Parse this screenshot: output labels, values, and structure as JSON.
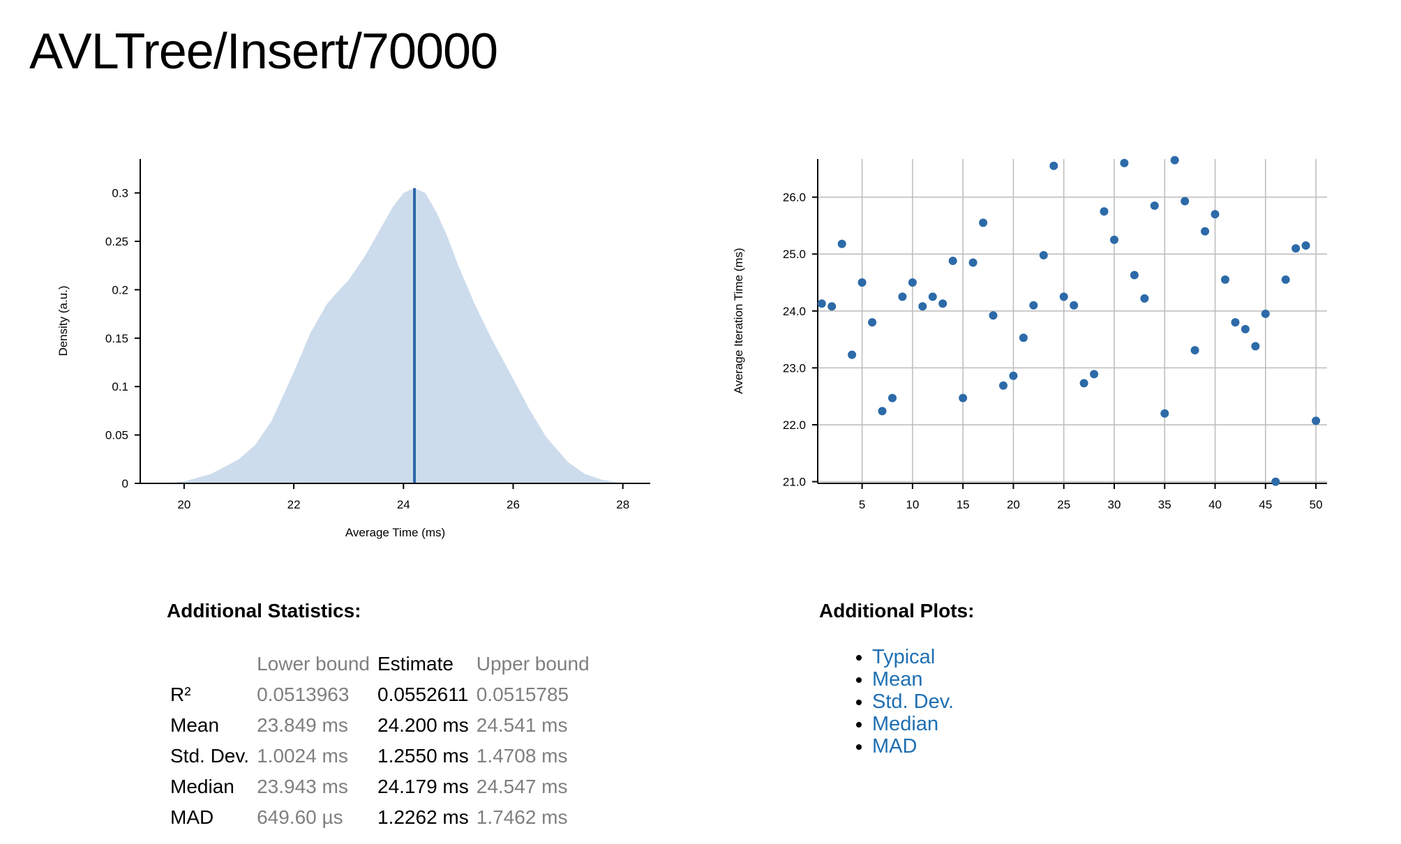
{
  "title": "AVLTree/Insert/70000",
  "chart_data": [
    {
      "type": "area",
      "title": "",
      "xlabel": "Average Time (ms)",
      "ylabel": "Density (a.u.)",
      "xlim": [
        19.2,
        28.5
      ],
      "ylim": [
        0,
        0.335
      ],
      "x_ticks": [
        "20",
        "22",
        "24",
        "26",
        "28"
      ],
      "y_ticks": [
        "0",
        "0.05",
        "0.1",
        "0.15",
        "0.2",
        "0.25",
        "0.3"
      ],
      "x": [
        19.7,
        20.0,
        20.5,
        21.0,
        21.3,
        21.6,
        22.0,
        22.3,
        22.6,
        22.8,
        23.0,
        23.3,
        23.6,
        23.8,
        24.0,
        24.2,
        24.4,
        24.6,
        24.8,
        25.0,
        25.3,
        25.6,
        26.0,
        26.3,
        26.6,
        27.0,
        27.3,
        27.6,
        27.9,
        28.2
      ],
      "density": [
        0.0,
        0.002,
        0.01,
        0.025,
        0.04,
        0.065,
        0.115,
        0.155,
        0.185,
        0.198,
        0.21,
        0.235,
        0.265,
        0.285,
        0.3,
        0.305,
        0.3,
        0.28,
        0.255,
        0.225,
        0.185,
        0.15,
        0.108,
        0.076,
        0.048,
        0.022,
        0.01,
        0.004,
        0.001,
        0.0
      ],
      "mean_line": 24.2,
      "colors": {
        "fill": "#cddcec",
        "line": "#2c69a8"
      }
    },
    {
      "type": "scatter",
      "title": "",
      "xlabel": "",
      "ylabel": "Average Iteration Time (ms)",
      "xlim": [
        0.6,
        51.1
      ],
      "ylim": [
        20.97,
        26.67
      ],
      "x_ticks": [
        "5",
        "10",
        "15",
        "20",
        "25",
        "30",
        "35",
        "40",
        "45",
        "50"
      ],
      "y_ticks": [
        "21.0",
        "22.0",
        "23.0",
        "24.0",
        "25.0",
        "26.0"
      ],
      "grid": true,
      "x": [
        1,
        2,
        3,
        4,
        5,
        6,
        7,
        8,
        9,
        10,
        11,
        12,
        13,
        14,
        15,
        16,
        17,
        18,
        19,
        20,
        21,
        22,
        23,
        24,
        25,
        26,
        27,
        28,
        29,
        30,
        31,
        32,
        33,
        34,
        35,
        36,
        37,
        38,
        39,
        40,
        41,
        42,
        43,
        44,
        45,
        46,
        47,
        48,
        49,
        50
      ],
      "y": [
        24.13,
        24.08,
        25.18,
        23.23,
        24.5,
        23.8,
        22.24,
        22.47,
        24.25,
        24.5,
        24.08,
        24.25,
        24.13,
        24.88,
        22.47,
        24.85,
        25.55,
        23.92,
        22.69,
        22.86,
        23.53,
        24.1,
        24.98,
        26.55,
        24.25,
        24.1,
        22.73,
        22.89,
        25.75,
        25.25,
        26.6,
        24.63,
        24.22,
        25.85,
        22.2,
        26.65,
        25.93,
        23.31,
        25.4,
        25.7,
        24.55,
        23.8,
        23.68,
        23.38,
        23.95,
        21.0,
        24.55,
        25.1,
        25.15,
        22.07
      ],
      "colors": {
        "point": "#2c6aa8",
        "grid": "#bbbbbb"
      }
    }
  ],
  "stats": {
    "heading": "Additional Statistics:",
    "columns": [
      "",
      "Lower bound",
      "Estimate",
      "Upper bound"
    ],
    "rows": [
      {
        "label": "R²",
        "lower": "0.0513963",
        "estimate": "0.0552611",
        "upper": "0.0515785"
      },
      {
        "label": "Mean",
        "lower": "23.849 ms",
        "estimate": "24.200 ms",
        "upper": "24.541 ms"
      },
      {
        "label": "Std. Dev.",
        "lower": "1.0024 ms",
        "estimate": "1.2550 ms",
        "upper": "1.4708 ms"
      },
      {
        "label": "Median",
        "lower": "23.943 ms",
        "estimate": "24.179 ms",
        "upper": "24.547 ms"
      },
      {
        "label": "MAD",
        "lower": "649.60 µs",
        "estimate": "1.2262 ms",
        "upper": "1.7462 ms"
      }
    ]
  },
  "plots": {
    "heading": "Additional Plots:",
    "links": [
      "Typical",
      "Mean",
      "Std. Dev.",
      "Median",
      "MAD"
    ]
  }
}
